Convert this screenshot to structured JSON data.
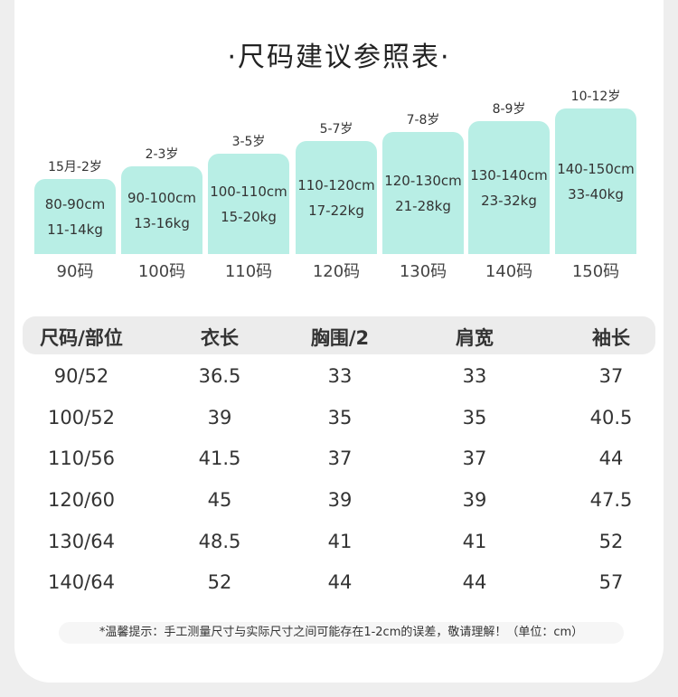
{
  "title": "·尺码建议参照表·",
  "sizes": [
    {
      "age": "15月-2岁",
      "height": "80-90cm",
      "weight": "11-14kg",
      "size": "90码"
    },
    {
      "age": "2-3岁",
      "height": "90-100cm",
      "weight": "13-16kg",
      "size": "100码"
    },
    {
      "age": "3-5岁",
      "height": "100-110cm",
      "weight": "15-20kg",
      "size": "110码"
    },
    {
      "age": "5-7岁",
      "height": "110-120cm",
      "weight": "17-22kg",
      "size": "120码"
    },
    {
      "age": "7-8岁",
      "height": "120-130cm",
      "weight": "21-28kg",
      "size": "130码"
    },
    {
      "age": "8-9岁",
      "height": "130-140cm",
      "weight": "23-32kg",
      "size": "140码"
    },
    {
      "age": "10-12岁",
      "height": "140-150cm",
      "weight": "33-40kg",
      "size": "150码"
    }
  ],
  "table": {
    "header": [
      "尺码/部位",
      "衣长",
      "胸围/2",
      "肩宽",
      "袖长"
    ],
    "rows": [
      [
        "90/52",
        36.5,
        33,
        33,
        37
      ],
      [
        "100/52",
        39,
        35,
        35,
        40.5
      ],
      [
        "110/56",
        41.5,
        37,
        37,
        44
      ],
      [
        "120/60",
        45,
        39,
        39,
        47.5
      ],
      [
        "130/64",
        48.5,
        41,
        41,
        52
      ],
      [
        "140/64",
        52,
        44,
        44,
        57
      ]
    ]
  },
  "note": "*温馨提示：手工测量尺寸与实际尺寸之间可能存在1-2cm的误差，敬请理解！（单位：cm）"
}
